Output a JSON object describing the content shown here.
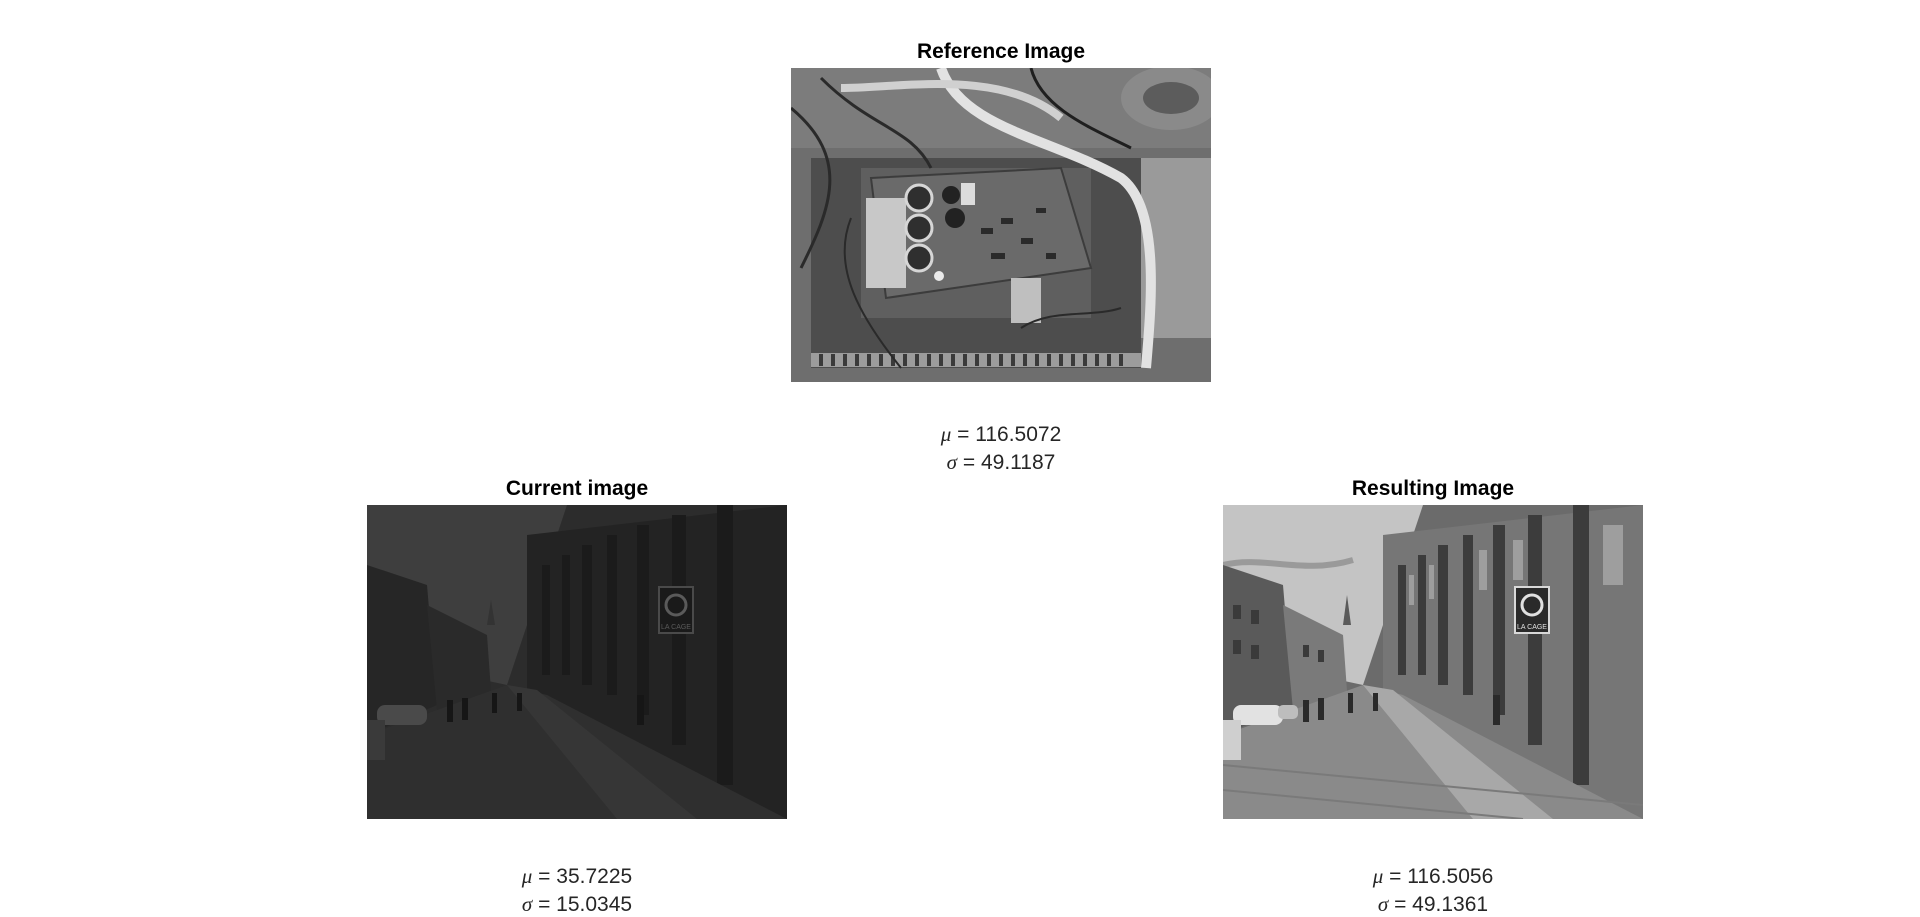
{
  "panels": {
    "reference": {
      "title": "Reference Image",
      "mu_symbol": "μ",
      "mu_text": " = 116.5072",
      "sigma_symbol": "σ",
      "sigma_text": " = 49.1187"
    },
    "current": {
      "title": "Current image",
      "mu_symbol": "μ",
      "mu_text": " = 35.7225",
      "sigma_symbol": "σ",
      "sigma_text": " = 15.0345"
    },
    "resulting": {
      "title": "Resulting Image",
      "mu_symbol": "μ",
      "mu_text": " = 116.5056",
      "sigma_symbol": "σ",
      "sigma_text": " = 49.1361"
    }
  },
  "images": {
    "reference": {
      "subject": "circuit-board-photo",
      "tone": "grayscale"
    },
    "current": {
      "subject": "street-photo",
      "tone": "dark-grayscale",
      "sign_text": "LA CAGE"
    },
    "resulting": {
      "subject": "street-photo",
      "tone": "grayscale",
      "sign_text": "LA CAGE"
    }
  }
}
